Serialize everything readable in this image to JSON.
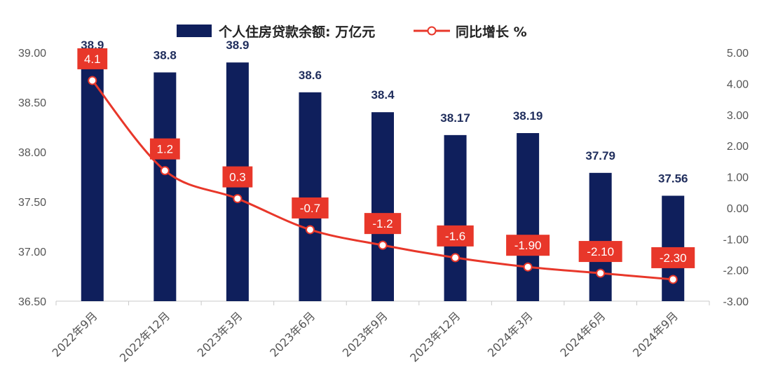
{
  "colors": {
    "bar": "#0f1f5c",
    "line": "#e8372a",
    "label_box": "#e8372a",
    "axis": "#c8c8c8",
    "tick_text": "#555555",
    "bar_label": "#1f2d5c"
  },
  "legend": {
    "bar_label": "个人住房贷款余额: 万亿元",
    "line_label": "同比增长 %"
  },
  "chart_data": {
    "type": "bar",
    "categories": [
      "2022年9月",
      "2022年12月",
      "2023年3月",
      "2023年6月",
      "2023年9月",
      "2023年12月",
      "2024年3月",
      "2024年6月",
      "2024年9月"
    ],
    "series": [
      {
        "name": "个人住房贷款余额: 万亿元",
        "type": "bar",
        "axis": "left",
        "values": [
          38.9,
          38.8,
          38.9,
          38.6,
          38.4,
          38.17,
          38.19,
          37.79,
          37.56
        ],
        "labels": [
          "38.9",
          "38.8",
          "38.9",
          "38.6",
          "38.4",
          "38.17",
          "38.19",
          "37.79",
          "37.56"
        ]
      },
      {
        "name": "同比增长 %",
        "type": "line",
        "axis": "right",
        "values": [
          4.1,
          1.2,
          0.3,
          -0.7,
          -1.2,
          -1.6,
          -1.9,
          -2.1,
          -2.3
        ],
        "labels": [
          "4.1",
          "1.2",
          "0.3",
          "-0.7",
          "-1.2",
          "-1.6",
          "-1.90",
          "-2.10",
          "-2.30"
        ]
      }
    ],
    "y_left": {
      "lim": [
        36.5,
        39.0
      ],
      "ticks": [
        "36.50",
        "37.00",
        "37.50",
        "38.00",
        "38.50",
        "39.00"
      ]
    },
    "y_right": {
      "lim": [
        -3.0,
        5.0
      ],
      "ticks": [
        "-3.00",
        "-2.00",
        "-1.00",
        "0.00",
        "1.00",
        "2.00",
        "3.00",
        "4.00",
        "5.00"
      ]
    },
    "grid": false,
    "legend_position": "top"
  }
}
